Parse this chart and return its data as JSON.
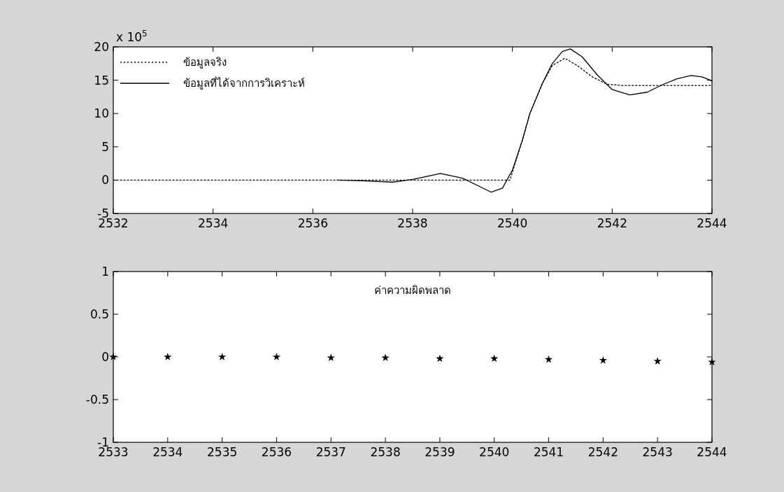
{
  "chart_data": [
    {
      "type": "line",
      "xlim": [
        2532,
        2544
      ],
      "xticks": [
        2532,
        2534,
        2536,
        2538,
        2540,
        2542,
        2544
      ],
      "ylim": [
        -5,
        20
      ],
      "yticks": [
        -5,
        0,
        5,
        10,
        15,
        20
      ],
      "legend": "top left",
      "grid": false,
      "annotations": [
        "x 10$^{5}$"
      ],
      "series": [
        {
          "name": "ข้อมูลจริง",
          "color": "#000000",
          "line_style": "dotted",
          "x": [
            2532,
            2534,
            2536,
            2538,
            2539.95,
            2540.2,
            2540.35,
            2540.6,
            2540.8,
            2541.05,
            2541.3,
            2541.6,
            2541.9,
            2542.2,
            2543,
            2544
          ],
          "values": [
            0,
            0,
            0,
            0,
            0,
            6,
            10,
            14.5,
            17.2,
            18.3,
            17.2,
            15.5,
            14.4,
            14.2,
            14.2,
            14.2
          ]
        },
        {
          "name": "ข้อมูลที่ได้จากการวิเคราะห์",
          "color": "#000000",
          "line_style": "solid",
          "x": [
            2536.5,
            2537.0,
            2537.6,
            2538.0,
            2538.56,
            2539.0,
            2539.3,
            2539.57,
            2539.8,
            2540.0,
            2540.2,
            2540.35,
            2540.6,
            2540.8,
            2541.0,
            2541.16,
            2541.4,
            2541.7,
            2542.0,
            2542.35,
            2542.7,
            2543.0,
            2543.3,
            2543.58,
            2543.8,
            2544
          ],
          "values": [
            0,
            -0.1,
            -0.3,
            0.1,
            1.0,
            0.3,
            -0.8,
            -1.8,
            -1.2,
            1.5,
            6,
            10,
            14.5,
            17.5,
            19.3,
            19.7,
            18.5,
            15.8,
            13.6,
            12.8,
            13.2,
            14.3,
            15.2,
            15.7,
            15.5,
            14.9
          ]
        }
      ]
    },
    {
      "type": "scatter",
      "title": "ค่าความผิดพลาด",
      "xlim": [
        2533,
        2544
      ],
      "xticks": [
        2533,
        2534,
        2535,
        2536,
        2537,
        2538,
        2539,
        2540,
        2541,
        2542,
        2543,
        2544
      ],
      "ylim": [
        -1,
        1
      ],
      "yticks": [
        -1,
        -0.5,
        0,
        0.5,
        1
      ],
      "grid": false,
      "marker": "star",
      "series": [
        {
          "color": "#000000",
          "x": [
            2533,
            2534,
            2535,
            2536,
            2537,
            2538,
            2539,
            2540,
            2541,
            2542,
            2543,
            2544
          ],
          "values": [
            0,
            0,
            0,
            0,
            -0.01,
            -0.01,
            -0.02,
            -0.02,
            -0.03,
            -0.04,
            -0.05,
            -0.06
          ]
        }
      ]
    }
  ]
}
